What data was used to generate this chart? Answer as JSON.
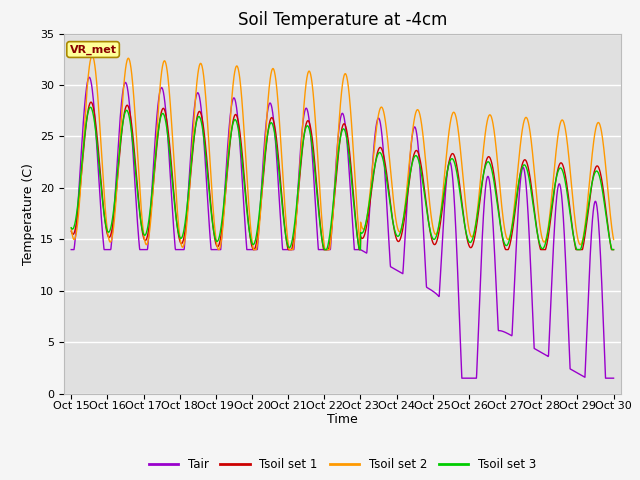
{
  "title": "Soil Temperature at -4cm",
  "xlabel": "Time",
  "ylabel": "Temperature (C)",
  "ylim": [
    0,
    35
  ],
  "bg_color": "#e0e0e0",
  "grid_color": "#ffffff",
  "line_colors": {
    "Tair": "#9900cc",
    "Tsoil_set1": "#cc0000",
    "Tsoil_set2": "#ff9900",
    "Tsoil_set3": "#00cc00"
  },
  "legend_labels": [
    "Tair",
    "Tsoil set 1",
    "Tsoil set 2",
    "Tsoil set 3"
  ],
  "x_tick_labels": [
    "Oct 15",
    "Oct 16",
    "Oct 17",
    "Oct 18",
    "Oct 19",
    "Oct 20",
    "Oct 21",
    "Oct 22",
    "Oct 23",
    "Oct 24",
    "Oct 25",
    "Oct 26",
    "Oct 27",
    "Oct 28",
    "Oct 29",
    "Oct 30"
  ],
  "annotation_text": "VR_met",
  "title_fontsize": 12,
  "axis_label_fontsize": 9,
  "tick_fontsize": 8
}
